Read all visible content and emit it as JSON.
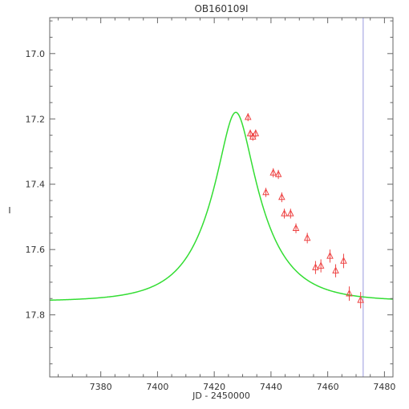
{
  "chart_data": {
    "type": "scatter",
    "title": "OB160109I",
    "xlabel": "JD - 2450000",
    "ylabel": "I",
    "xlim": [
      7362,
      7483
    ],
    "ylim": [
      17.99,
      16.89
    ],
    "y_inverted": true,
    "grid": false,
    "legend": "none",
    "x_ticks": [
      7380,
      7400,
      7420,
      7440,
      7460,
      7480
    ],
    "x_tick_labels": [
      "7380",
      "7400",
      "7420",
      "7440",
      "7460",
      "7480"
    ],
    "y_ticks": [
      17.0,
      17.2,
      17.4,
      17.6,
      17.8
    ],
    "y_tick_labels": [
      "17.0",
      "17.2",
      "17.4",
      "17.6",
      "17.8"
    ],
    "vertical_line": {
      "x": 7472.5,
      "color": "#9999dd"
    },
    "model": {
      "color": "#33dd33",
      "t0": 7427.6,
      "tE": 18,
      "u0": 0.3,
      "baseline": 17.755,
      "peak": 17.18
    },
    "series": [
      {
        "marker": "triangle",
        "color": "#ee4444",
        "points": [
          {
            "x": 7431.9,
            "y": 17.195,
            "err": 0.012
          },
          {
            "x": 7432.7,
            "y": 17.245,
            "err": 0.012
          },
          {
            "x": 7433.6,
            "y": 17.255,
            "err": 0.012
          },
          {
            "x": 7434.6,
            "y": 17.245,
            "err": 0.012
          },
          {
            "x": 7438.2,
            "y": 17.425,
            "err": 0.014
          },
          {
            "x": 7440.8,
            "y": 17.365,
            "err": 0.014
          },
          {
            "x": 7442.6,
            "y": 17.37,
            "err": 0.014
          },
          {
            "x": 7443.8,
            "y": 17.44,
            "err": 0.015
          },
          {
            "x": 7444.7,
            "y": 17.49,
            "err": 0.015
          },
          {
            "x": 7446.9,
            "y": 17.49,
            "err": 0.015
          },
          {
            "x": 7448.8,
            "y": 17.535,
            "err": 0.015
          },
          {
            "x": 7452.8,
            "y": 17.565,
            "err": 0.016
          },
          {
            "x": 7455.7,
            "y": 17.655,
            "err": 0.02
          },
          {
            "x": 7457.6,
            "y": 17.65,
            "err": 0.02
          },
          {
            "x": 7460.8,
            "y": 17.62,
            "err": 0.02
          },
          {
            "x": 7462.8,
            "y": 17.665,
            "err": 0.02
          },
          {
            "x": 7465.6,
            "y": 17.635,
            "err": 0.022
          },
          {
            "x": 7467.6,
            "y": 17.735,
            "err": 0.022
          },
          {
            "x": 7471.6,
            "y": 17.755,
            "err": 0.025
          }
        ]
      }
    ]
  }
}
